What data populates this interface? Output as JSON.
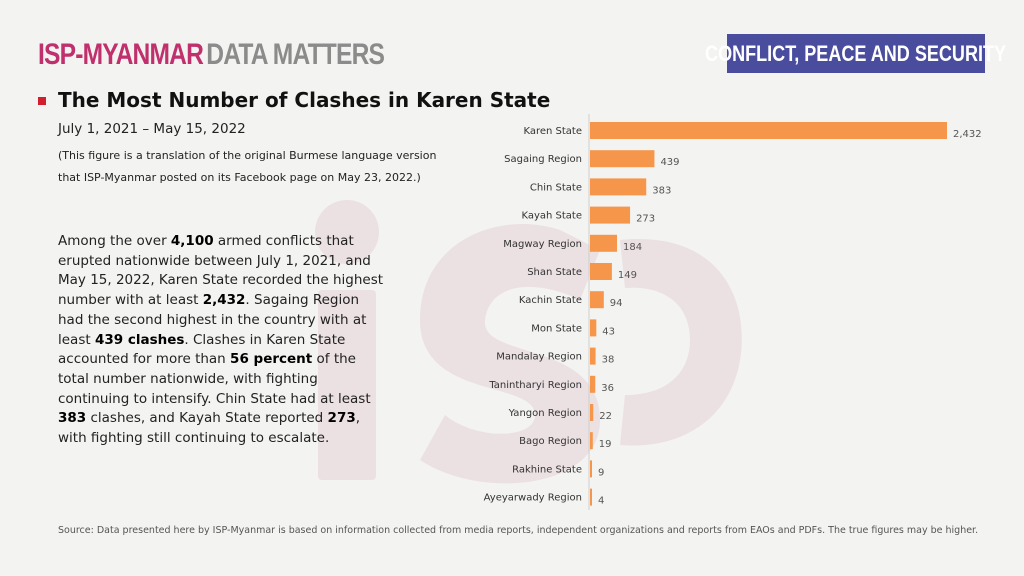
{
  "header": {
    "brand_isp": "ISP-MYANMAR",
    "brand_dm": "DATA MATTERS",
    "category": "CONFLICT, PEACE AND SECURITY"
  },
  "title": "The Most Number of Clashes in Karen State",
  "date_range": "July 1, 2021 – May 15, 2022",
  "note_line1": "(This figure is a translation of the original Burmese language version",
  "note_line2": "that ISP-Myanmar posted on its Facebook page on May 23, 2022.)",
  "summary": [
    {
      "t": "Among the over ",
      "b": false
    },
    {
      "t": "4,100",
      "b": true
    },
    {
      "t": " armed conflicts that erupted nationwide between July 1, 2021, and May 15, 2022, Karen State recorded the highest number with at least ",
      "b": false
    },
    {
      "t": "2,432",
      "b": true
    },
    {
      "t": ". Sagaing Region had the second highest in the country with at least ",
      "b": false
    },
    {
      "t": "439 clashes",
      "b": true
    },
    {
      "t": ". Clashes in Karen State accounted for more than ",
      "b": false
    },
    {
      "t": "56 percent",
      "b": true
    },
    {
      "t": " of the total number nationwide, with fighting continuing to intensify. Chin State had at least ",
      "b": false
    },
    {
      "t": "383",
      "b": true
    },
    {
      "t": " clashes, and Kayah State reported ",
      "b": false
    },
    {
      "t": "273",
      "b": true
    },
    {
      "t": ", with fighting still continuing to escalate.",
      "b": false
    }
  ],
  "source": "Source: Data presented here by ISP-Myanmar is based on information collected from media reports, independent organizations and reports from EAOs and PDFs. The true figures may be higher.",
  "colors": {
    "bar": "#f5964a",
    "accent": "#c0306c",
    "category_bg": "#4a4d9e",
    "bullet": "#d41e2d"
  },
  "chart_data": {
    "type": "bar",
    "orientation": "horizontal",
    "categories": [
      "Karen State",
      "Sagaing Region",
      "Chin State",
      "Kayah State",
      "Magway Region",
      "Shan State",
      "Kachin State",
      "Mon State",
      "Mandalay Region",
      "Tanintharyi Region",
      "Yangon Region",
      "Bago Region",
      "Rakhine State",
      "Ayeyarwady Region"
    ],
    "values": [
      2432,
      439,
      383,
      273,
      184,
      149,
      94,
      43,
      38,
      36,
      22,
      19,
      9,
      4
    ],
    "value_labels": [
      "2,432",
      "439",
      "383",
      "273",
      "184",
      "149",
      "94",
      "43",
      "38",
      "36",
      "22",
      "19",
      "9",
      "4"
    ],
    "xlim": [
      0,
      2432
    ],
    "grid": false
  }
}
